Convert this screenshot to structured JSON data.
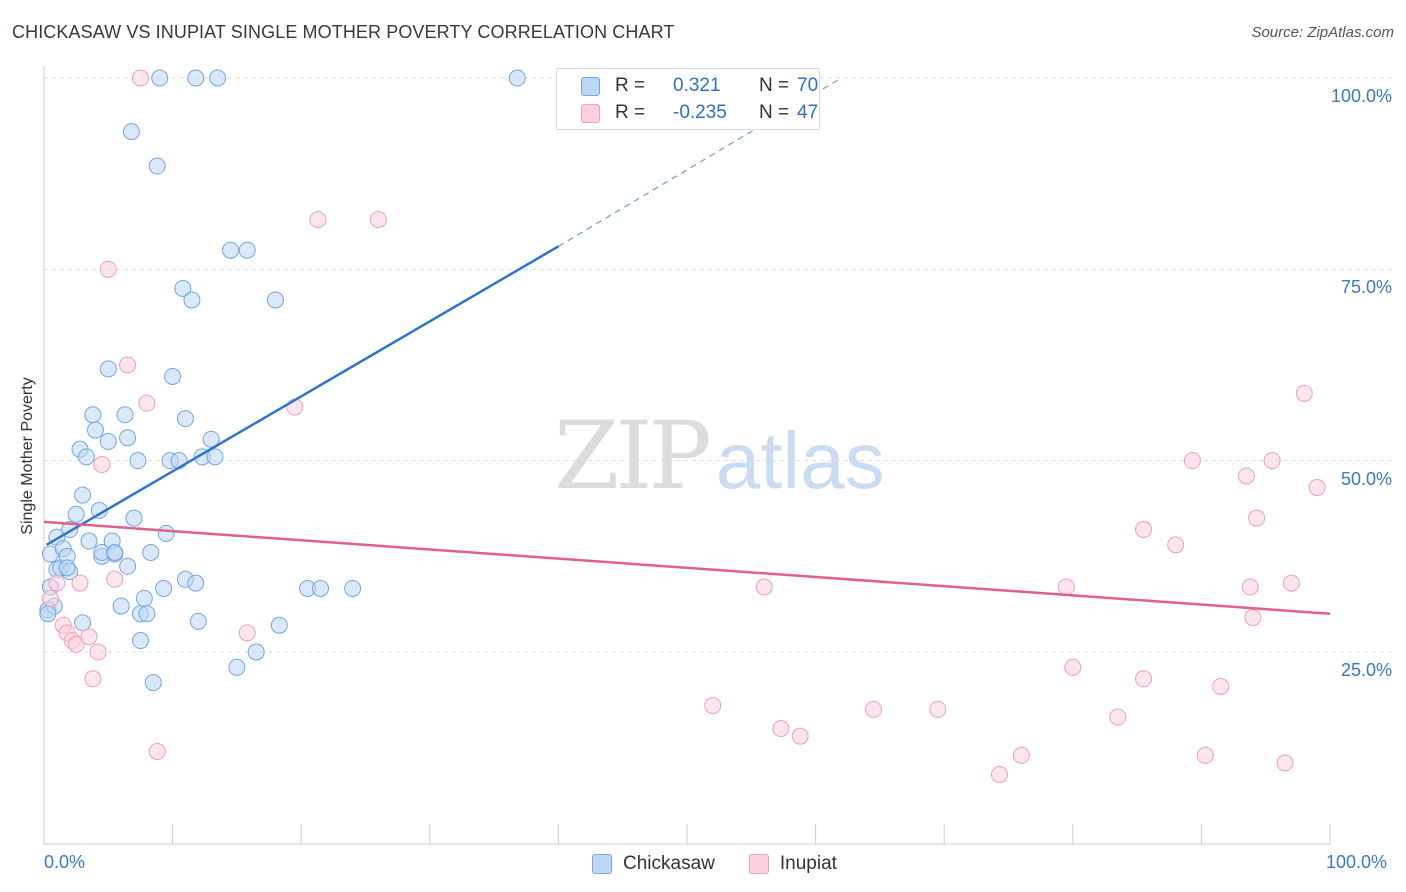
{
  "chart_data": {
    "type": "scatter",
    "title": "CHICKASAW VS INUPIAT SINGLE MOTHER POVERTY CORRELATION CHART",
    "source": "Source: ZipAtlas.com",
    "xlabel": "",
    "ylabel": "Single Mother Poverty",
    "xlim": [
      0,
      100
    ],
    "ylim": [
      0,
      105
    ],
    "x_tick_labels": [
      "0.0%",
      "100.0%"
    ],
    "y_ticks": [
      25,
      50,
      75,
      100
    ],
    "y_tick_labels": [
      "25.0%",
      "50.0%",
      "75.0%",
      "100.0%"
    ],
    "grid": true,
    "watermark": {
      "zip": "ZIP",
      "atlas": "atlas"
    },
    "legend_top": {
      "rows": [
        {
          "r_label": "R =",
          "r_value": "0.321",
          "n_label": "N =",
          "n_value": "70"
        },
        {
          "r_label": "R =",
          "r_value": "-0.235",
          "n_label": "N =",
          "n_value": "47"
        }
      ]
    },
    "series": [
      {
        "name": "Chickasaw",
        "color": "#6fa8e6",
        "fill": "#bcd6f4",
        "line_color": "#2d74d0",
        "trend": {
          "x0": 0.2,
          "y0": 39.0,
          "x1": 40.0,
          "y1": 78.0,
          "dash_to_x": 62.0,
          "dash_to_y": 100.0
        },
        "points": [
          [
            0.3,
            30.5
          ],
          [
            0.5,
            33.5
          ],
          [
            0.5,
            37.8
          ],
          [
            0.8,
            31.0
          ],
          [
            1.0,
            35.8
          ],
          [
            1.0,
            40.0
          ],
          [
            1.3,
            36.0
          ],
          [
            1.5,
            38.5
          ],
          [
            1.8,
            37.5
          ],
          [
            2.0,
            35.5
          ],
          [
            2.0,
            41.0
          ],
          [
            2.5,
            43.0
          ],
          [
            2.8,
            51.5
          ],
          [
            3.0,
            28.8
          ],
          [
            3.0,
            45.5
          ],
          [
            3.3,
            50.5
          ],
          [
            3.5,
            39.5
          ],
          [
            3.8,
            56.0
          ],
          [
            4.0,
            54.0
          ],
          [
            4.3,
            43.5
          ],
          [
            4.5,
            37.5
          ],
          [
            4.5,
            38.0
          ],
          [
            5.0,
            62.0
          ],
          [
            5.0,
            52.5
          ],
          [
            5.3,
            39.5
          ],
          [
            5.5,
            37.8
          ],
          [
            5.5,
            38.0
          ],
          [
            6.0,
            31.0
          ],
          [
            6.3,
            56.0
          ],
          [
            6.5,
            36.2
          ],
          [
            6.5,
            53.0
          ],
          [
            6.8,
            93.0
          ],
          [
            7.0,
            42.5
          ],
          [
            7.3,
            50.0
          ],
          [
            7.5,
            30.0
          ],
          [
            7.5,
            26.5
          ],
          [
            7.8,
            32.0
          ],
          [
            8.0,
            30.0
          ],
          [
            8.3,
            38.0
          ],
          [
            8.5,
            21.0
          ],
          [
            8.8,
            88.5
          ],
          [
            9.0,
            100.0
          ],
          [
            9.3,
            33.3
          ],
          [
            9.5,
            40.5
          ],
          [
            9.8,
            50.0
          ],
          [
            10.0,
            61.0
          ],
          [
            10.5,
            50.0
          ],
          [
            10.8,
            72.5
          ],
          [
            11.0,
            55.5
          ],
          [
            11.0,
            34.5
          ],
          [
            11.5,
            71.0
          ],
          [
            11.8,
            100.0
          ],
          [
            11.8,
            34.0
          ],
          [
            12.0,
            29.0
          ],
          [
            12.3,
            50.5
          ],
          [
            13.0,
            52.8
          ],
          [
            13.3,
            50.5
          ],
          [
            13.5,
            100.0
          ],
          [
            14.5,
            77.5
          ],
          [
            15.0,
            23.0
          ],
          [
            15.8,
            77.5
          ],
          [
            16.5,
            25.0
          ],
          [
            18.0,
            71.0
          ],
          [
            18.3,
            28.5
          ],
          [
            20.5,
            33.3
          ],
          [
            21.5,
            33.3
          ],
          [
            24.0,
            33.3
          ],
          [
            36.8,
            100.0
          ],
          [
            0.3,
            30.0
          ],
          [
            1.8,
            36.0
          ]
        ]
      },
      {
        "name": "Inupiat",
        "color": "#f0a0b8",
        "fill": "#fbd0dc",
        "line_color": "#e0608a",
        "trend": {
          "x0": 0.0,
          "y0": 42.0,
          "x1": 100.0,
          "y1": 30.0
        },
        "points": [
          [
            0.5,
            32.0
          ],
          [
            1.0,
            34.0
          ],
          [
            1.5,
            28.5
          ],
          [
            1.8,
            27.5
          ],
          [
            2.2,
            26.5
          ],
          [
            2.5,
            26.0
          ],
          [
            2.8,
            34.0
          ],
          [
            3.5,
            27.0
          ],
          [
            3.8,
            21.5
          ],
          [
            4.2,
            25.0
          ],
          [
            4.5,
            49.5
          ],
          [
            5.0,
            75.0
          ],
          [
            5.5,
            34.5
          ],
          [
            6.5,
            62.5
          ],
          [
            7.5,
            100.0
          ],
          [
            8.0,
            57.5
          ],
          [
            8.8,
            12.0
          ],
          [
            15.8,
            27.5
          ],
          [
            19.5,
            57.0
          ],
          [
            21.3,
            81.5
          ],
          [
            26.0,
            81.5
          ],
          [
            52.0,
            18.0
          ],
          [
            56.0,
            33.5
          ],
          [
            57.3,
            15.0
          ],
          [
            58.8,
            14.0
          ],
          [
            64.5,
            17.5
          ],
          [
            69.5,
            17.5
          ],
          [
            74.3,
            9.0
          ],
          [
            76.0,
            11.5
          ],
          [
            79.5,
            33.5
          ],
          [
            80.0,
            23.0
          ],
          [
            83.5,
            16.5
          ],
          [
            85.5,
            21.5
          ],
          [
            85.5,
            41.0
          ],
          [
            88.0,
            39.0
          ],
          [
            89.3,
            50.0
          ],
          [
            90.3,
            11.5
          ],
          [
            91.5,
            20.5
          ],
          [
            93.5,
            48.0
          ],
          [
            93.8,
            33.5
          ],
          [
            94.0,
            29.5
          ],
          [
            94.3,
            42.5
          ],
          [
            95.5,
            50.0
          ],
          [
            96.5,
            10.5
          ],
          [
            97.0,
            34.0
          ],
          [
            98.0,
            58.8
          ],
          [
            99.0,
            46.5
          ]
        ]
      }
    ]
  }
}
